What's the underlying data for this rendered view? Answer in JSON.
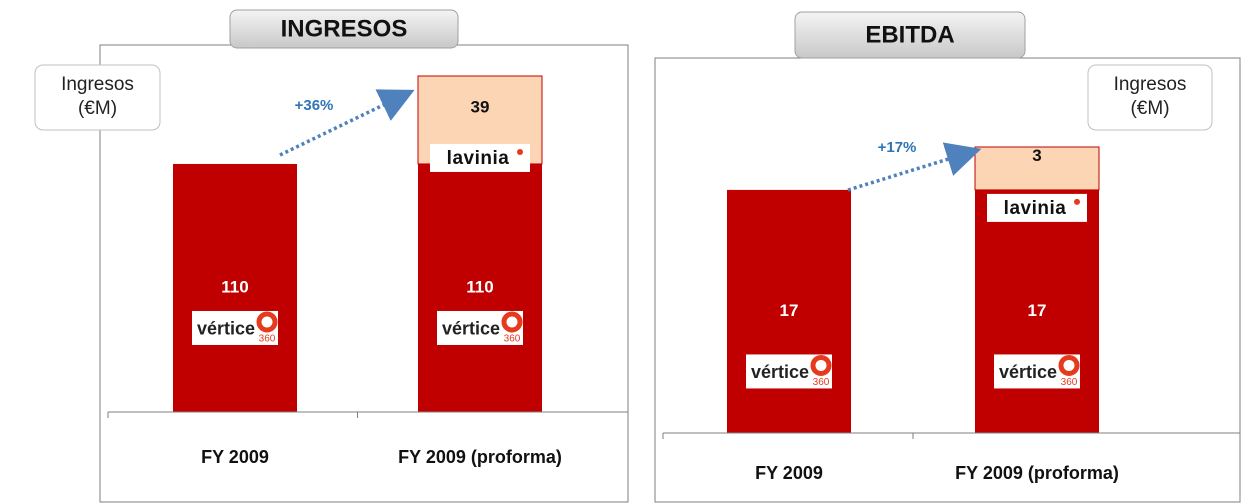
{
  "chart_data": [
    {
      "type": "stacked_bar",
      "title": "INGRESOS",
      "y_label": "Ingresos (€M)",
      "annotation": "+36%",
      "categories": [
        "FY 2009",
        "FY 2009 (proforma)"
      ],
      "series": [
        {
          "name": "vértice",
          "badge": "360",
          "color": "#c00000",
          "values": [
            110,
            110
          ]
        },
        {
          "name": "lavinia",
          "color": "#fcd5b5",
          "values": [
            null,
            39
          ]
        }
      ]
    },
    {
      "type": "stacked_bar",
      "title": "EBITDA",
      "y_label": "Ingresos (€M)",
      "annotation": "+17%",
      "categories": [
        "FY 2009",
        "FY 2009 (proforma)"
      ],
      "series": [
        {
          "name": "vértice",
          "badge": "360",
          "color": "#c00000",
          "values": [
            17,
            17
          ]
        },
        {
          "name": "lavinia",
          "color": "#fcd5b5",
          "values": [
            null,
            3
          ]
        }
      ]
    }
  ]
}
